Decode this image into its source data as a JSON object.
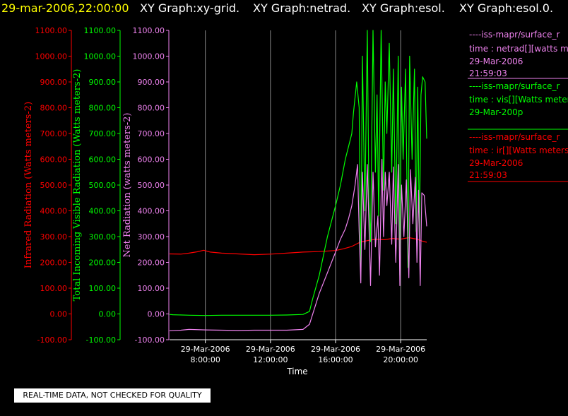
{
  "header": {
    "timestamp": "29-mar-2006,22:00:00",
    "graph_titles": [
      "XY Graph:xy-grid.",
      "XY Graph:netrad.",
      "XY Graph:esol.",
      "XY Graph:esol.0."
    ]
  },
  "colors": {
    "infrared": "#ff0000",
    "visible": "#00ff00",
    "net": "#ee82ee",
    "header_timestamp": "#ffff00",
    "axis": "#ffffff",
    "grid": "#888888"
  },
  "legend": {
    "net": [
      "----iss-mapr/surface_r",
      "time : netrad[][watts m",
      "29-Mar-2006",
      "21:59:03"
    ],
    "visible": [
      "----iss-mapr/surface_r",
      "time : vis[][Watts meter",
      "29-Mar-200p"
    ],
    "infrared": [
      "----iss-mapr/surface_r",
      "time : ir[][Watts meters",
      "29-Mar-2006",
      "21:59:03"
    ]
  },
  "qc_label": "REAL-TIME DATA, NOT CHECKED FOR QUALITY",
  "chart_data": {
    "type": "line",
    "xlabel": "Time",
    "x_range_hours": [
      5.8,
      21.6
    ],
    "x_ticks": [
      {
        "hour": 8,
        "date": "29-Mar-2006",
        "time": "8:00:00"
      },
      {
        "hour": 12,
        "date": "29-Mar-2006",
        "time": "12:00:00"
      },
      {
        "hour": 16,
        "date": "29-Mar-2006",
        "time": "16:00:00"
      },
      {
        "hour": 20,
        "date": "29-Mar-2006",
        "time": "20:00:00"
      }
    ],
    "y_range": [
      -100,
      1100
    ],
    "y_ticks": [
      -100,
      0,
      100,
      200,
      300,
      400,
      500,
      600,
      700,
      800,
      900,
      1000,
      1100
    ],
    "y_axes": [
      {
        "label": "Infrared Radiation (Watts meters-2)",
        "ticks": [
          "-100.00",
          "0.00",
          "100.00",
          "200.00",
          "300.00",
          "400.00",
          "500.00",
          "600.00",
          "700.00",
          "800.00",
          "900.00",
          "1000.00",
          "1100.00"
        ]
      },
      {
        "label": "Total Incoming Visible Radiation (Watts meters-2)",
        "ticks": [
          "-100.00",
          "0.00",
          "100.00",
          "200.00",
          "300.00",
          "400.00",
          "500.00",
          "600.00",
          "700.00",
          "800.00",
          "900.00",
          "1000.00",
          "1100.00"
        ]
      },
      {
        "label": "Net Radiation (watts meters-2)",
        "ticks": [
          "-100.00",
          "0.00",
          "100.00",
          "200.00",
          "300.00",
          "400.00",
          "500.00",
          "600.00",
          "700.00",
          "800.00",
          "900.00",
          "1000.00",
          "1100.00"
        ]
      }
    ],
    "series": [
      {
        "key": "infrared",
        "values": [
          [
            5.8,
            233
          ],
          [
            6.5,
            232
          ],
          [
            7,
            236
          ],
          [
            7.5,
            241
          ],
          [
            7.9,
            247
          ],
          [
            8.3,
            240
          ],
          [
            9,
            236
          ],
          [
            10,
            233
          ],
          [
            11,
            230
          ],
          [
            12,
            232
          ],
          [
            13,
            236
          ],
          [
            14,
            240
          ],
          [
            15,
            242
          ],
          [
            16,
            246
          ],
          [
            16.5,
            253
          ],
          [
            17,
            262
          ],
          [
            17.5,
            278
          ],
          [
            18,
            285
          ],
          [
            18.5,
            290
          ],
          [
            19,
            288
          ],
          [
            19.5,
            293
          ],
          [
            20,
            290
          ],
          [
            20.5,
            296
          ],
          [
            21,
            290
          ],
          [
            21.3,
            283
          ],
          [
            21.6,
            278
          ]
        ]
      },
      {
        "key": "visible",
        "values": [
          [
            5.8,
            -2
          ],
          [
            6,
            -3
          ],
          [
            7,
            -5
          ],
          [
            8,
            -6
          ],
          [
            9,
            -5
          ],
          [
            10,
            -5
          ],
          [
            11,
            -5
          ],
          [
            12,
            -5
          ],
          [
            13,
            -4
          ],
          [
            14,
            -2
          ],
          [
            14.4,
            10
          ],
          [
            14.6,
            60
          ],
          [
            15,
            150
          ],
          [
            15.5,
            300
          ],
          [
            16,
            420
          ],
          [
            16.3,
            500
          ],
          [
            16.6,
            600
          ],
          [
            16.8,
            650
          ],
          [
            17,
            700
          ],
          [
            17.1,
            780
          ],
          [
            17.3,
            900
          ],
          [
            17.45,
            800
          ],
          [
            17.55,
            130
          ],
          [
            17.65,
            1000
          ],
          [
            17.8,
            400
          ],
          [
            17.95,
            1100
          ],
          [
            18.05,
            450
          ],
          [
            18.15,
            280
          ],
          [
            18.3,
            1100
          ],
          [
            18.45,
            550
          ],
          [
            18.55,
            850
          ],
          [
            18.65,
            380
          ],
          [
            18.8,
            1100
          ],
          [
            18.95,
            480
          ],
          [
            19.05,
            900
          ],
          [
            19.15,
            700
          ],
          [
            19.3,
            1050
          ],
          [
            19.45,
            550
          ],
          [
            19.55,
            950
          ],
          [
            19.7,
            350
          ],
          [
            19.85,
            1000
          ],
          [
            19.95,
            150
          ],
          [
            20.05,
            880
          ],
          [
            20.15,
            600
          ],
          [
            20.3,
            950
          ],
          [
            20.45,
            180
          ],
          [
            20.55,
            1000
          ],
          [
            20.7,
            600
          ],
          [
            20.85,
            950
          ],
          [
            20.95,
            320
          ],
          [
            21.05,
            880
          ],
          [
            21.15,
            300
          ],
          [
            21.25,
            850
          ],
          [
            21.35,
            920
          ],
          [
            21.5,
            900
          ],
          [
            21.6,
            680
          ]
        ]
      },
      {
        "key": "net",
        "values": [
          [
            5.8,
            -65
          ],
          [
            6.5,
            -63
          ],
          [
            7,
            -60
          ],
          [
            8,
            -62
          ],
          [
            9,
            -63
          ],
          [
            10,
            -64
          ],
          [
            11,
            -63
          ],
          [
            12,
            -63
          ],
          [
            13,
            -63
          ],
          [
            14,
            -60
          ],
          [
            14.4,
            -40
          ],
          [
            14.7,
            20
          ],
          [
            15,
            80
          ],
          [
            15.5,
            160
          ],
          [
            16,
            240
          ],
          [
            16.3,
            290
          ],
          [
            16.6,
            330
          ],
          [
            16.8,
            370
          ],
          [
            17,
            420
          ],
          [
            17.2,
            500
          ],
          [
            17.35,
            580
          ],
          [
            17.45,
            320
          ],
          [
            17.55,
            120
          ],
          [
            17.65,
            550
          ],
          [
            17.8,
            250
          ],
          [
            17.95,
            580
          ],
          [
            18.05,
            350
          ],
          [
            18.15,
            110
          ],
          [
            18.3,
            550
          ],
          [
            18.45,
            260
          ],
          [
            18.6,
            380
          ],
          [
            18.7,
            150
          ],
          [
            18.85,
            600
          ],
          [
            18.95,
            300
          ],
          [
            19.05,
            550
          ],
          [
            19.15,
            420
          ],
          [
            19.3,
            550
          ],
          [
            19.45,
            270
          ],
          [
            19.55,
            570
          ],
          [
            19.7,
            200
          ],
          [
            19.85,
            580
          ],
          [
            19.95,
            110
          ],
          [
            20.05,
            500
          ],
          [
            20.2,
            300
          ],
          [
            20.35,
            520
          ],
          [
            20.5,
            140
          ],
          [
            20.6,
            560
          ],
          [
            20.75,
            350
          ],
          [
            20.9,
            530
          ],
          [
            21.0,
            200
          ],
          [
            21.1,
            480
          ],
          [
            21.2,
            110
          ],
          [
            21.3,
            470
          ],
          [
            21.45,
            460
          ],
          [
            21.6,
            340
          ]
        ]
      }
    ]
  }
}
